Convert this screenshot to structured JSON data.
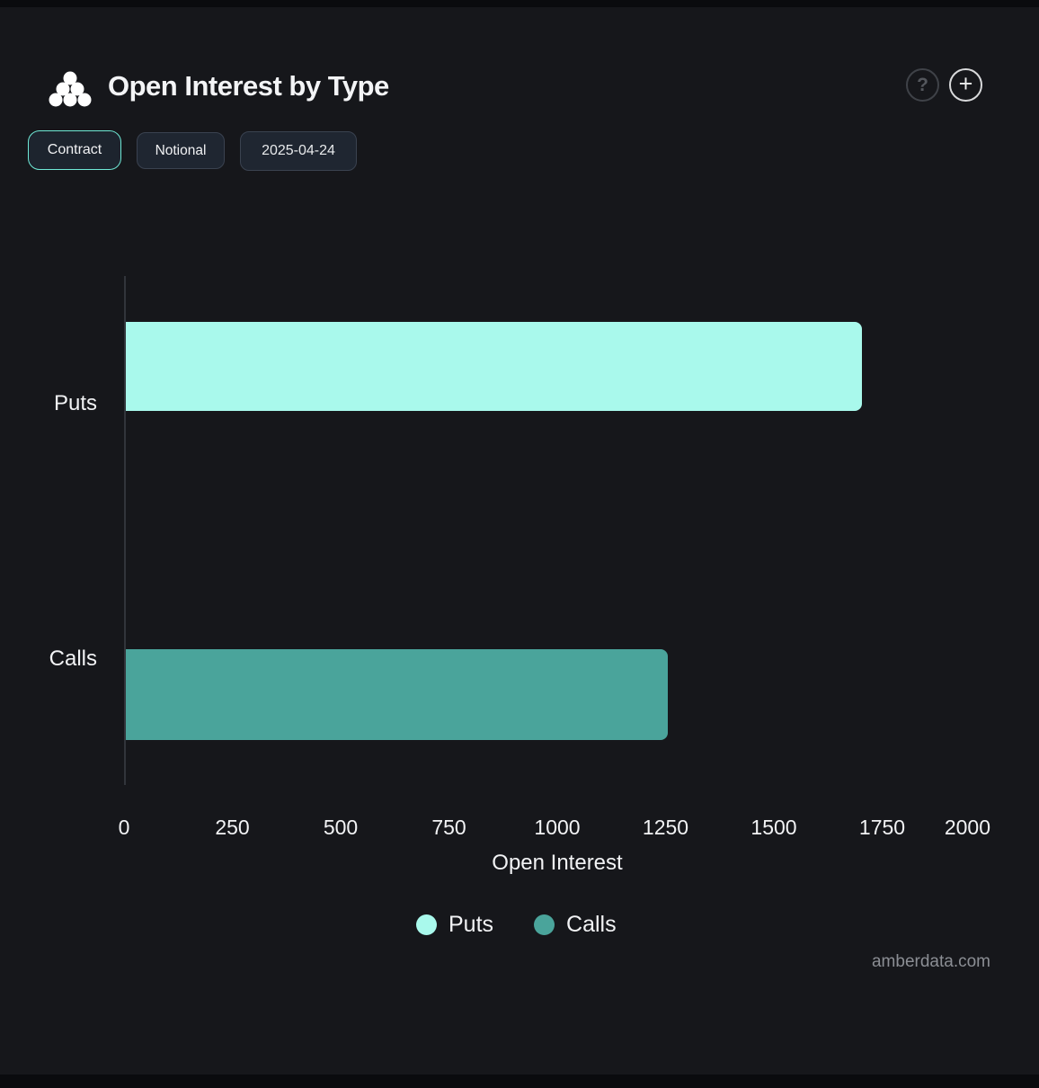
{
  "header": {
    "title": "Open Interest by Type",
    "help_label": "?",
    "add_label": "+"
  },
  "toolbar": {
    "buttons": [
      {
        "label": "Contract",
        "active": true
      },
      {
        "label": "Notional",
        "active": false
      },
      {
        "label": "2025-04-24",
        "active": false
      }
    ]
  },
  "chart_data": {
    "type": "bar",
    "orientation": "horizontal",
    "title": "Open Interest by Type",
    "categories": [
      "Puts",
      "Calls"
    ],
    "values": [
      1700,
      1250
    ],
    "series": [
      {
        "name": "Puts",
        "value": 1700,
        "color": "#a9f9ec"
      },
      {
        "name": "Calls",
        "value": 1250,
        "color": "#4aa49b"
      }
    ],
    "xlabel": "Open Interest",
    "ylabel": "",
    "xlim": [
      0,
      2000
    ],
    "xticks": [
      0,
      250,
      500,
      750,
      1000,
      1250,
      1500,
      1750,
      2000
    ],
    "grid": false,
    "legend_position": "bottom"
  },
  "footer": {
    "watermark": "amberdata.com"
  },
  "colors": {
    "background": "#16171b",
    "accent": "#6fe9d6",
    "puts": "#a9f9ec",
    "calls": "#4aa49b",
    "axis_line": "#32353b"
  }
}
